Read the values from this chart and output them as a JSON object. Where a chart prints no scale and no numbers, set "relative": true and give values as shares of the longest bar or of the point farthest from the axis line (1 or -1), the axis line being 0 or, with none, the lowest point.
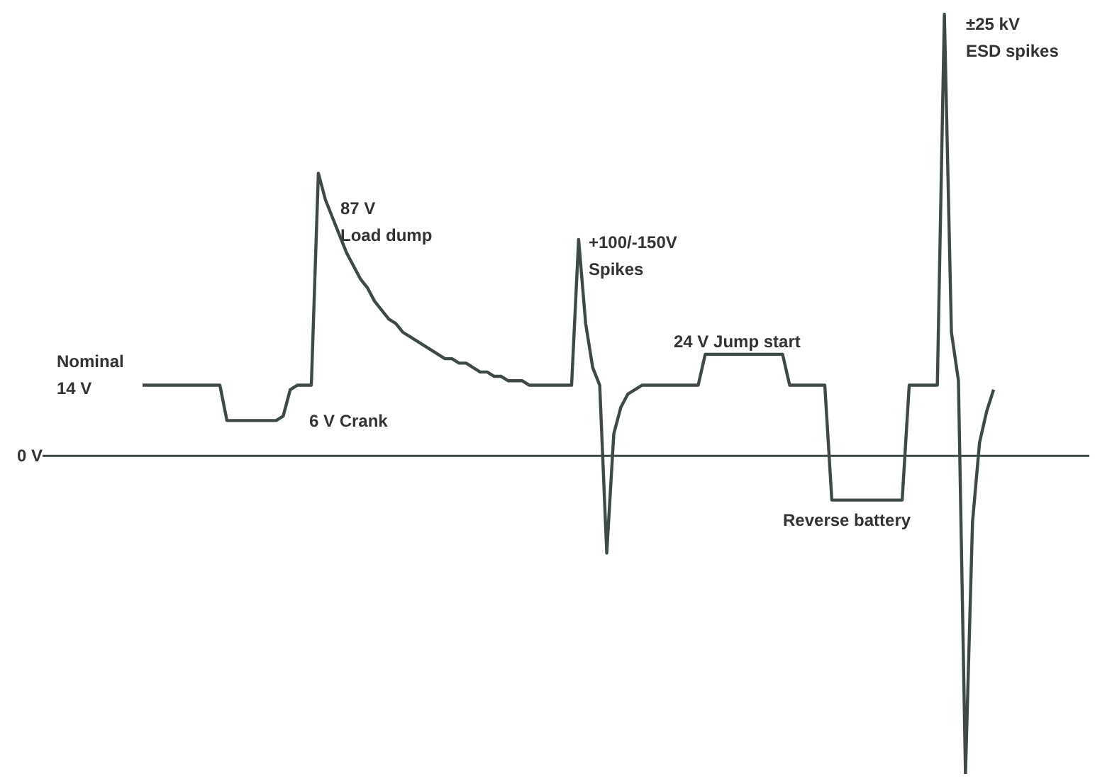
{
  "chart_data": {
    "type": "line",
    "relative": true,
    "color": "#3d4a48",
    "categories": [
      null,
      null,
      null,
      null,
      null,
      null,
      null,
      null,
      null,
      null,
      null,
      null,
      null,
      null,
      null,
      null,
      null,
      null,
      null,
      null,
      null,
      null,
      null,
      null,
      null,
      null,
      null,
      null,
      null,
      null,
      null,
      null,
      null,
      null,
      null,
      null,
      null,
      null,
      null,
      null,
      null,
      null,
      null,
      null,
      null,
      null,
      null,
      null,
      null,
      null,
      null,
      null,
      null,
      null,
      null,
      null,
      null,
      null,
      null,
      null,
      null,
      null,
      null,
      null,
      null,
      null,
      null,
      null,
      null,
      null,
      null,
      null,
      null,
      null,
      null,
      null,
      null,
      null,
      null,
      null,
      null,
      null,
      null,
      null,
      null,
      null,
      null,
      null,
      null,
      null,
      null,
      null,
      null,
      null,
      null,
      null,
      null,
      null,
      null,
      null,
      null,
      null,
      null,
      null,
      null,
      null,
      null,
      null,
      null,
      null,
      null,
      null,
      null,
      null,
      null,
      null,
      null,
      null,
      null,
      null,
      null,
      null
    ],
    "values": [
      0.16,
      0.16,
      0.16,
      0.16,
      0.16,
      0.16,
      0.16,
      0.16,
      0.16,
      0.16,
      0.16,
      0.16,
      0.08,
      0.08,
      0.08,
      0.08,
      0.08,
      0.08,
      0.08,
      0.08,
      0.09,
      0.15,
      0.16,
      0.16,
      0.16,
      0.64,
      0.58,
      0.54,
      0.5,
      0.46,
      0.43,
      0.4,
      0.38,
      0.35,
      0.33,
      0.31,
      0.3,
      0.28,
      0.27,
      0.26,
      0.25,
      0.24,
      0.23,
      0.22,
      0.22,
      0.21,
      0.21,
      0.2,
      0.19,
      0.19,
      0.18,
      0.18,
      0.17,
      0.17,
      0.17,
      0.16,
      0.16,
      0.16,
      0.16,
      0.16,
      0.16,
      0.16,
      0.49,
      0.3,
      0.2,
      0.16,
      -0.22,
      0.05,
      0.11,
      0.14,
      0.15,
      0.16,
      0.16,
      0.16,
      0.16,
      0.16,
      0.16,
      0.16,
      0.16,
      0.16,
      0.23,
      0.23,
      0.23,
      0.23,
      0.23,
      0.23,
      0.23,
      0.23,
      0.23,
      0.23,
      0.23,
      0.23,
      0.16,
      0.16,
      0.16,
      0.16,
      0.16,
      0.16,
      -0.1,
      -0.1,
      -0.1,
      -0.1,
      -0.1,
      -0.1,
      -0.1,
      -0.1,
      -0.1,
      -0.1,
      -0.1,
      0.16,
      0.16,
      0.16,
      0.16,
      0.16,
      1,
      0.28,
      0.17,
      -0.72,
      -0.15,
      0.03,
      0.1,
      0.15
    ],
    "ref_lines": [
      {
        "axis": "y",
        "value": 0,
        "label": "0 V"
      }
    ],
    "annotations": [
      "Nominal\n14 V",
      "6 V Crank",
      "87 V\nLoad dump",
      "+100/-150V\nSpikes",
      "24 V Jump start",
      "Reverse battery",
      "±25 kV\nESD spikes"
    ]
  }
}
